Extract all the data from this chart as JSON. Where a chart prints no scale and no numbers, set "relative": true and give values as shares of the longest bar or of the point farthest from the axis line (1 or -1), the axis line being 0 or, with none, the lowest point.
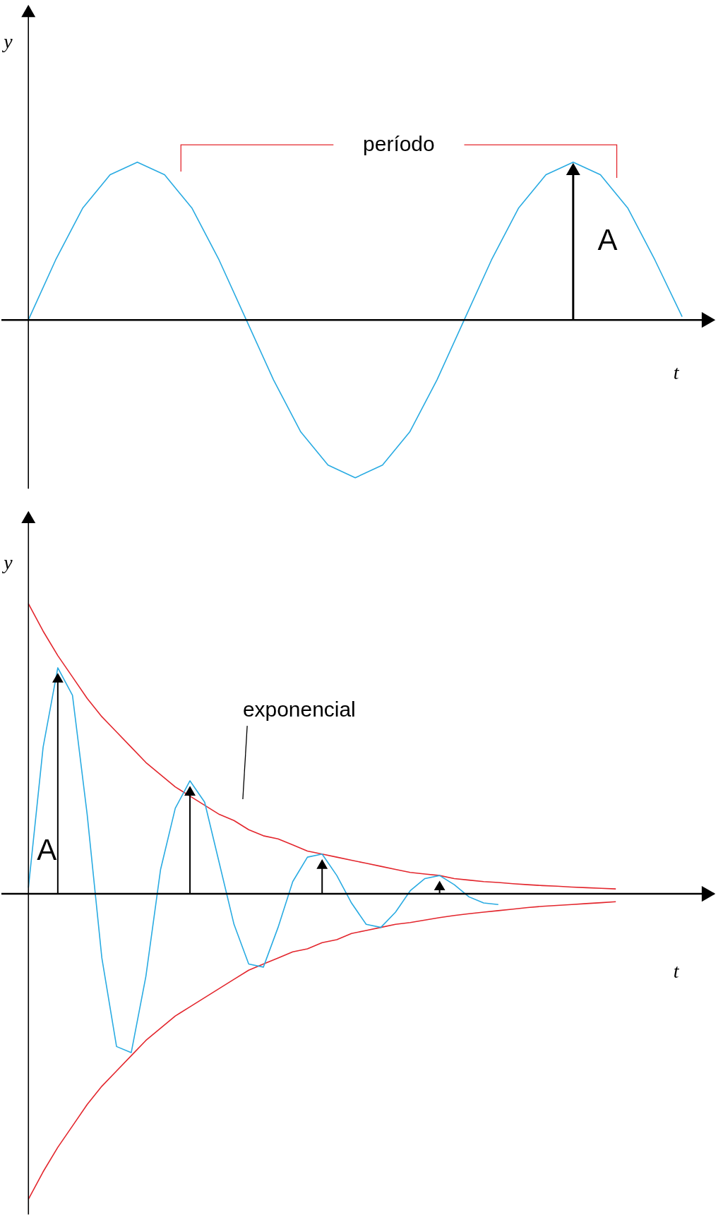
{
  "chart_data": [
    {
      "type": "line",
      "relative": true,
      "xlabel": "t",
      "ylabel": "y",
      "annotations": [
        "período",
        "A"
      ],
      "categories": [
        null,
        null,
        null,
        null,
        null,
        null,
        null,
        null,
        null,
        null,
        null,
        null,
        null,
        null,
        null,
        null,
        null,
        null,
        null,
        null,
        null,
        null,
        null,
        null,
        null
      ],
      "series": [
        {
          "color": "#29abe2",
          "values": [
            0,
            0.38,
            0.71,
            0.92,
            1,
            0.92,
            0.71,
            0.38,
            0,
            -0.38,
            -0.71,
            -0.92,
            -1,
            -0.92,
            -0.71,
            -0.38,
            0,
            0.38,
            0.71,
            0.92,
            1,
            0.92,
            0.71,
            0.38,
            0.02
          ]
        }
      ]
    },
    {
      "type": "line",
      "relative": true,
      "xlabel": "t",
      "ylabel": "y",
      "annotations": [
        "exponencial",
        "A"
      ],
      "categories": [
        null,
        null,
        null,
        null,
        null,
        null,
        null,
        null,
        null,
        null,
        null,
        null,
        null,
        null,
        null,
        null,
        null,
        null,
        null,
        null,
        null,
        null,
        null,
        null,
        null,
        null,
        null,
        null,
        null,
        null,
        null,
        null,
        null,
        null,
        null,
        null,
        null,
        null,
        null,
        null,
        null
      ],
      "series": [
        {
          "color": "#e3262d",
          "values": [
            0.95,
            0.86,
            0.78,
            0.71,
            0.64,
            0.58,
            0.53,
            0.48,
            0.43,
            0.39,
            0.35,
            0.32,
            0.29,
            0.26,
            0.24,
            0.21,
            0.19,
            0.18,
            0.16,
            0.14,
            0.13,
            0.12,
            0.11,
            0.1,
            0.09,
            0.08,
            0.07,
            0.065,
            0.06,
            0.05,
            0.045,
            0.04,
            0.037,
            0.033,
            0.03,
            0.027,
            0.025,
            0.022,
            0.02,
            0.018,
            0.016
          ]
        },
        {
          "color": "#e3262d",
          "values": [
            -1,
            -0.91,
            -0.83,
            -0.76,
            -0.69,
            -0.63,
            -0.58,
            -0.53,
            -0.48,
            -0.44,
            -0.4,
            -0.37,
            -0.34,
            -0.31,
            -0.28,
            -0.25,
            -0.23,
            -0.21,
            -0.19,
            -0.18,
            -0.16,
            -0.15,
            -0.13,
            -0.12,
            -0.11,
            -0.1,
            -0.094,
            -0.086,
            -0.078,
            -0.071,
            -0.065,
            -0.06,
            -0.055,
            -0.05,
            -0.045,
            -0.041,
            -0.038,
            -0.035,
            -0.032,
            -0.029,
            -0.026
          ]
        },
        {
          "color": "#29abe2",
          "values": [
            0.02,
            0.48,
            0.74,
            0.65,
            0.26,
            -0.21,
            -0.5,
            -0.52,
            -0.27,
            0.08,
            0.28,
            0.37,
            0.3,
            0.1,
            -0.1,
            -0.23,
            -0.24,
            -0.11,
            0.04,
            0.12,
            0.13,
            0.06,
            -0.03,
            -0.1,
            -0.11,
            -0.06,
            0.01,
            0.05,
            0.06,
            0.03,
            -0.01,
            -0.03,
            -0.035,
            null,
            null,
            null,
            null,
            null,
            null,
            null,
            null
          ]
        }
      ]
    }
  ]
}
